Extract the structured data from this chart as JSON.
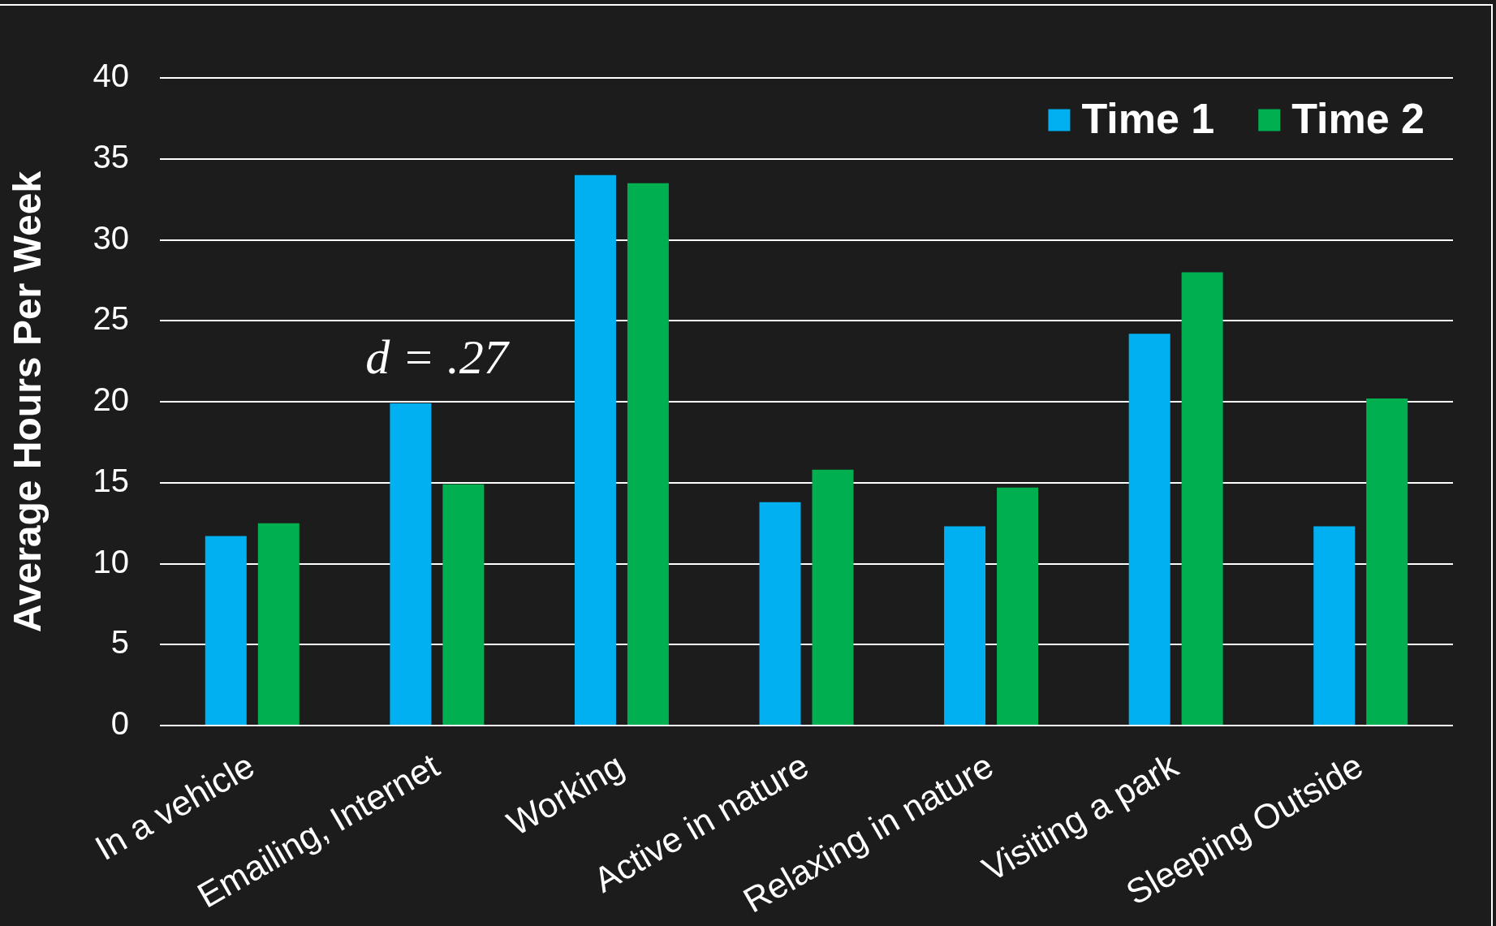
{
  "chart_data": {
    "type": "bar",
    "ylabel": "Average Hours Per Week",
    "categories": [
      "In a vehicle",
      "Emailing, Internet",
      "Working",
      "Active in nature",
      "Relaxing in nature",
      "Visiting a park",
      "Sleeping Outside"
    ],
    "series": [
      {
        "name": "Time 1",
        "color": "#00b0f0",
        "values": [
          11.7,
          19.9,
          34.0,
          13.8,
          12.3,
          24.2,
          12.3
        ]
      },
      {
        "name": "Time 2",
        "color": "#00b050",
        "values": [
          12.5,
          14.9,
          33.5,
          15.8,
          14.7,
          28.0,
          20.2
        ]
      }
    ],
    "ylim": [
      0,
      40
    ],
    "yticks": [
      0,
      5,
      10,
      15,
      20,
      25,
      30,
      35,
      40
    ],
    "grid": "y",
    "legend": "top right",
    "annotations": [
      "d = .27"
    ]
  }
}
